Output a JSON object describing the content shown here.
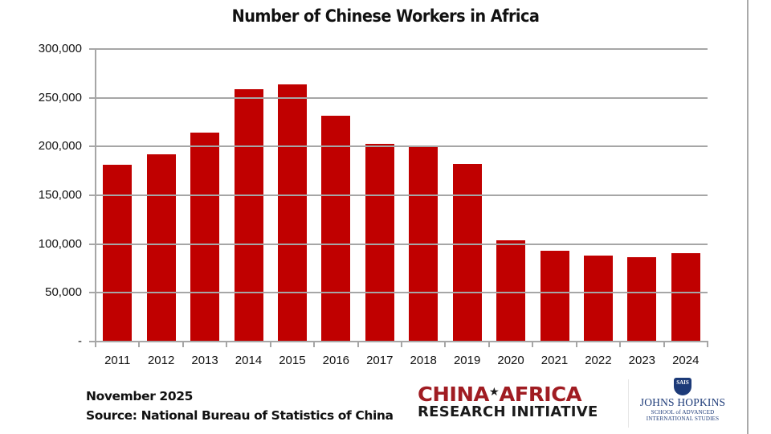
{
  "chart_data": {
    "type": "bar",
    "title": "Number of Chinese Workers in Africa",
    "xlabel": "",
    "ylabel": "",
    "categories": [
      "2011",
      "2012",
      "2013",
      "2014",
      "2015",
      "2016",
      "2017",
      "2018",
      "2019",
      "2020",
      "2021",
      "2022",
      "2023",
      "2024"
    ],
    "values": [
      181000,
      192000,
      214500,
      259000,
      263500,
      232000,
      202500,
      201000,
      182500,
      103500,
      93000,
      88000,
      86500,
      90500
    ],
    "ylim": [
      0,
      300000
    ],
    "yticks": [
      0,
      50000,
      100000,
      150000,
      200000,
      250000,
      300000
    ],
    "ytick_labels": [
      "-",
      "50,000",
      "100,000",
      "150,000",
      "200,000",
      "250,000",
      "300,000"
    ],
    "grid": true,
    "legend": null,
    "bar_color": "#c00000"
  },
  "footer": {
    "date": "November 2025",
    "source": "Source: National Bureau of  Statistics of China"
  },
  "logos": {
    "cari": {
      "line1_left": "CHINA",
      "line1_star": "★",
      "line1_right": "AFRICA",
      "line2": "RESEARCH INITIATIVE",
      "color_red": "#a01c22",
      "color_dark": "#1a1a1a"
    },
    "jhu": {
      "shield": "SAIS",
      "name": "JOHNS HOPKINS",
      "sub1": "SCHOOL of ADVANCED",
      "sub2": "INTERNATIONAL STUDIES",
      "color": "#1c3a78"
    }
  }
}
